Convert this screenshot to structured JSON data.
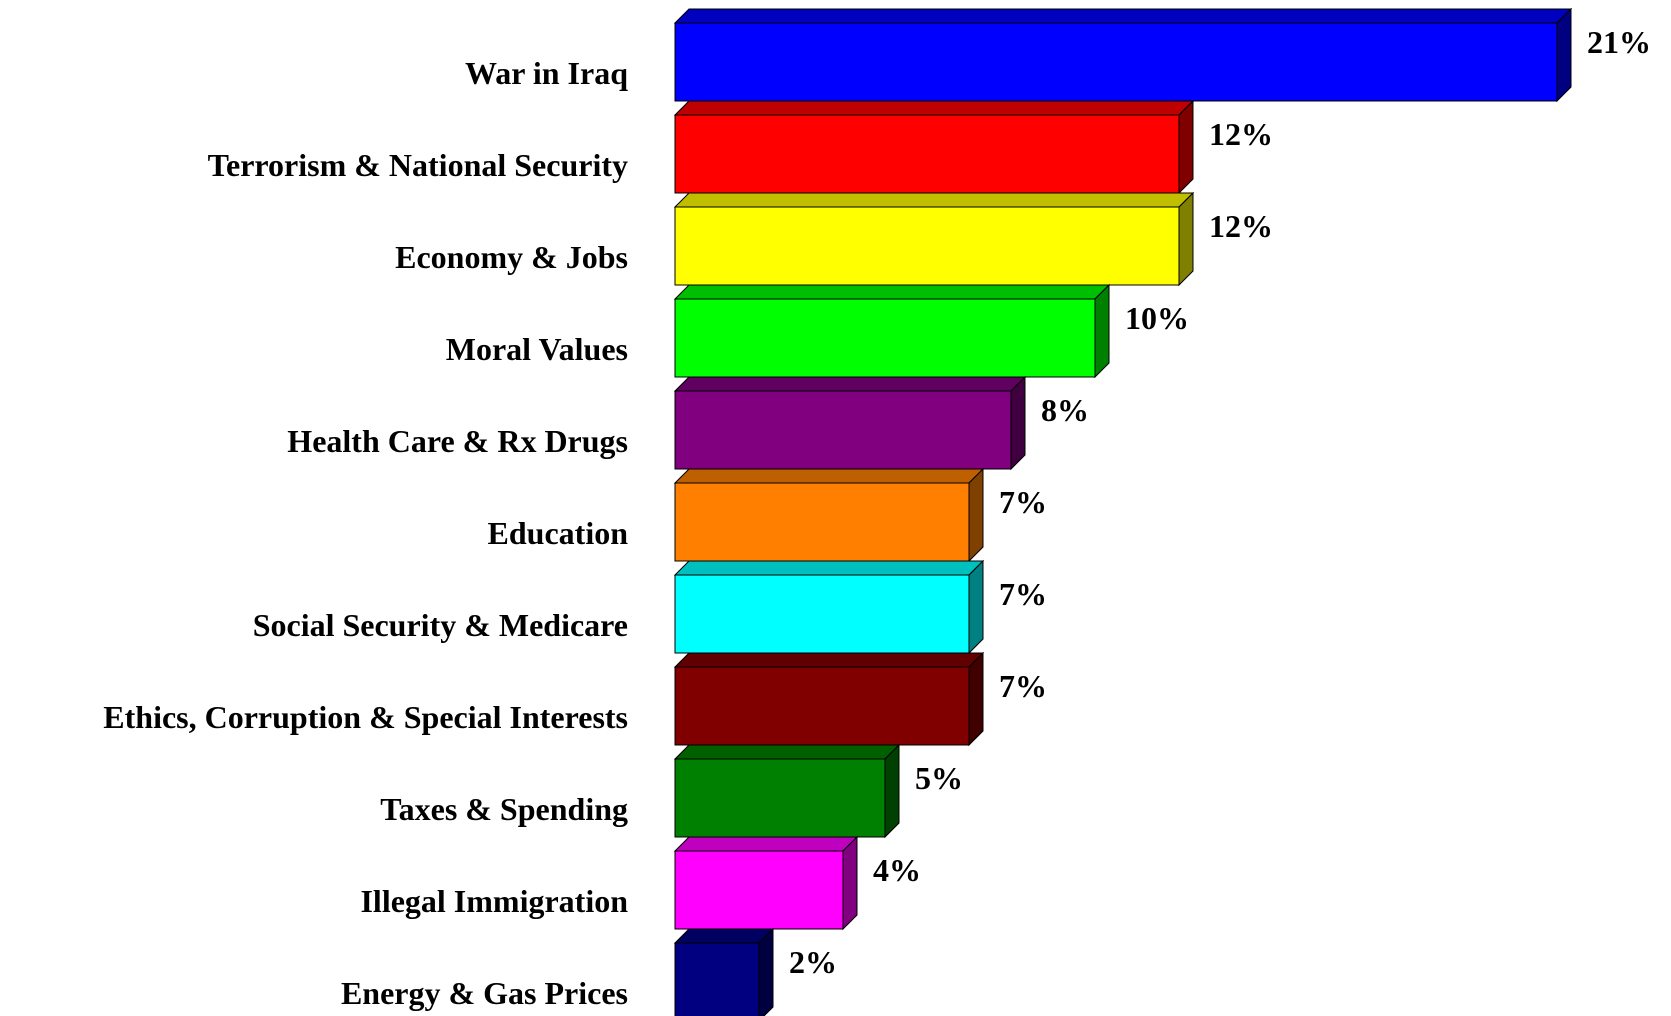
{
  "chart_data": {
    "type": "bar",
    "orientation": "horizontal",
    "style": "3d",
    "title": "",
    "xlabel": "",
    "ylabel": "",
    "xlim": [
      0,
      21
    ],
    "grid": false,
    "legend": "none",
    "value_suffix": "%",
    "categories": [
      "War in Iraq",
      "Terrorism & National Security",
      "Economy & Jobs",
      "Moral Values",
      "Health Care & Rx Drugs",
      "Education",
      "Social Security & Medicare",
      "Ethics, Corruption & Special Interests",
      "Taxes & Spending",
      "Illegal Immigration",
      "Energy & Gas Prices"
    ],
    "values": [
      21,
      12,
      12,
      10,
      8,
      7,
      7,
      7,
      5,
      4,
      2
    ],
    "value_labels": [
      "21%",
      "12%",
      "12%",
      "10%",
      "8%",
      "7%",
      "7%",
      "7%",
      "5%",
      "4%",
      "2%"
    ],
    "colors": [
      "#0000ff",
      "#ff0000",
      "#ffff00",
      "#00ff00",
      "#800080",
      "#ff8000",
      "#00ffff",
      "#800000",
      "#008000",
      "#ff00ff",
      "#000080"
    ]
  }
}
